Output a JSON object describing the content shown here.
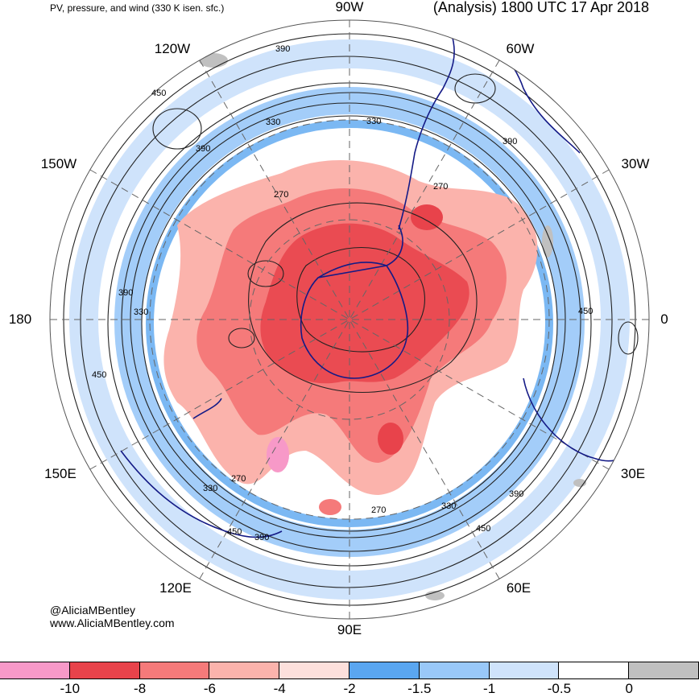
{
  "header": {
    "left_title": "PV, pressure, and wind (330 K isen. sfc.)",
    "right_title": "(Analysis) 1800 UTC 17 Apr 2018"
  },
  "credit": {
    "line1": "@AliciaMBentley",
    "line2": "www.AliciaMBentley.com"
  },
  "longitude_labels": {
    "n90w": "90W",
    "n60w": "60W",
    "n30w": "30W",
    "n0": "0",
    "n30e": "30E",
    "n60e": "60E",
    "n90e": "90E",
    "n120e": "120E",
    "n150e": "150E",
    "n180": "180",
    "n150w": "150W",
    "n120w": "120W"
  },
  "contour_labels": [
    "390",
    "330",
    "450",
    "390",
    "330",
    "270",
    "390",
    "270",
    "450",
    "390",
    "330",
    "450",
    "330",
    "270",
    "390",
    "450",
    "330",
    "270",
    "390",
    "450"
  ],
  "colorbar": {
    "colors": [
      "#f799c8",
      "#e8434b",
      "#f57a7a",
      "#fbb3ac",
      "#fde0dc",
      "#5aa6f0",
      "#99c8f8",
      "#cfe3fb",
      "#ffffff",
      "#c0c0c0"
    ],
    "labels": [
      "-10",
      "-8",
      "-6",
      "-4",
      "-2",
      "-1.5",
      "-1",
      "-0.5",
      "0"
    ]
  }
}
